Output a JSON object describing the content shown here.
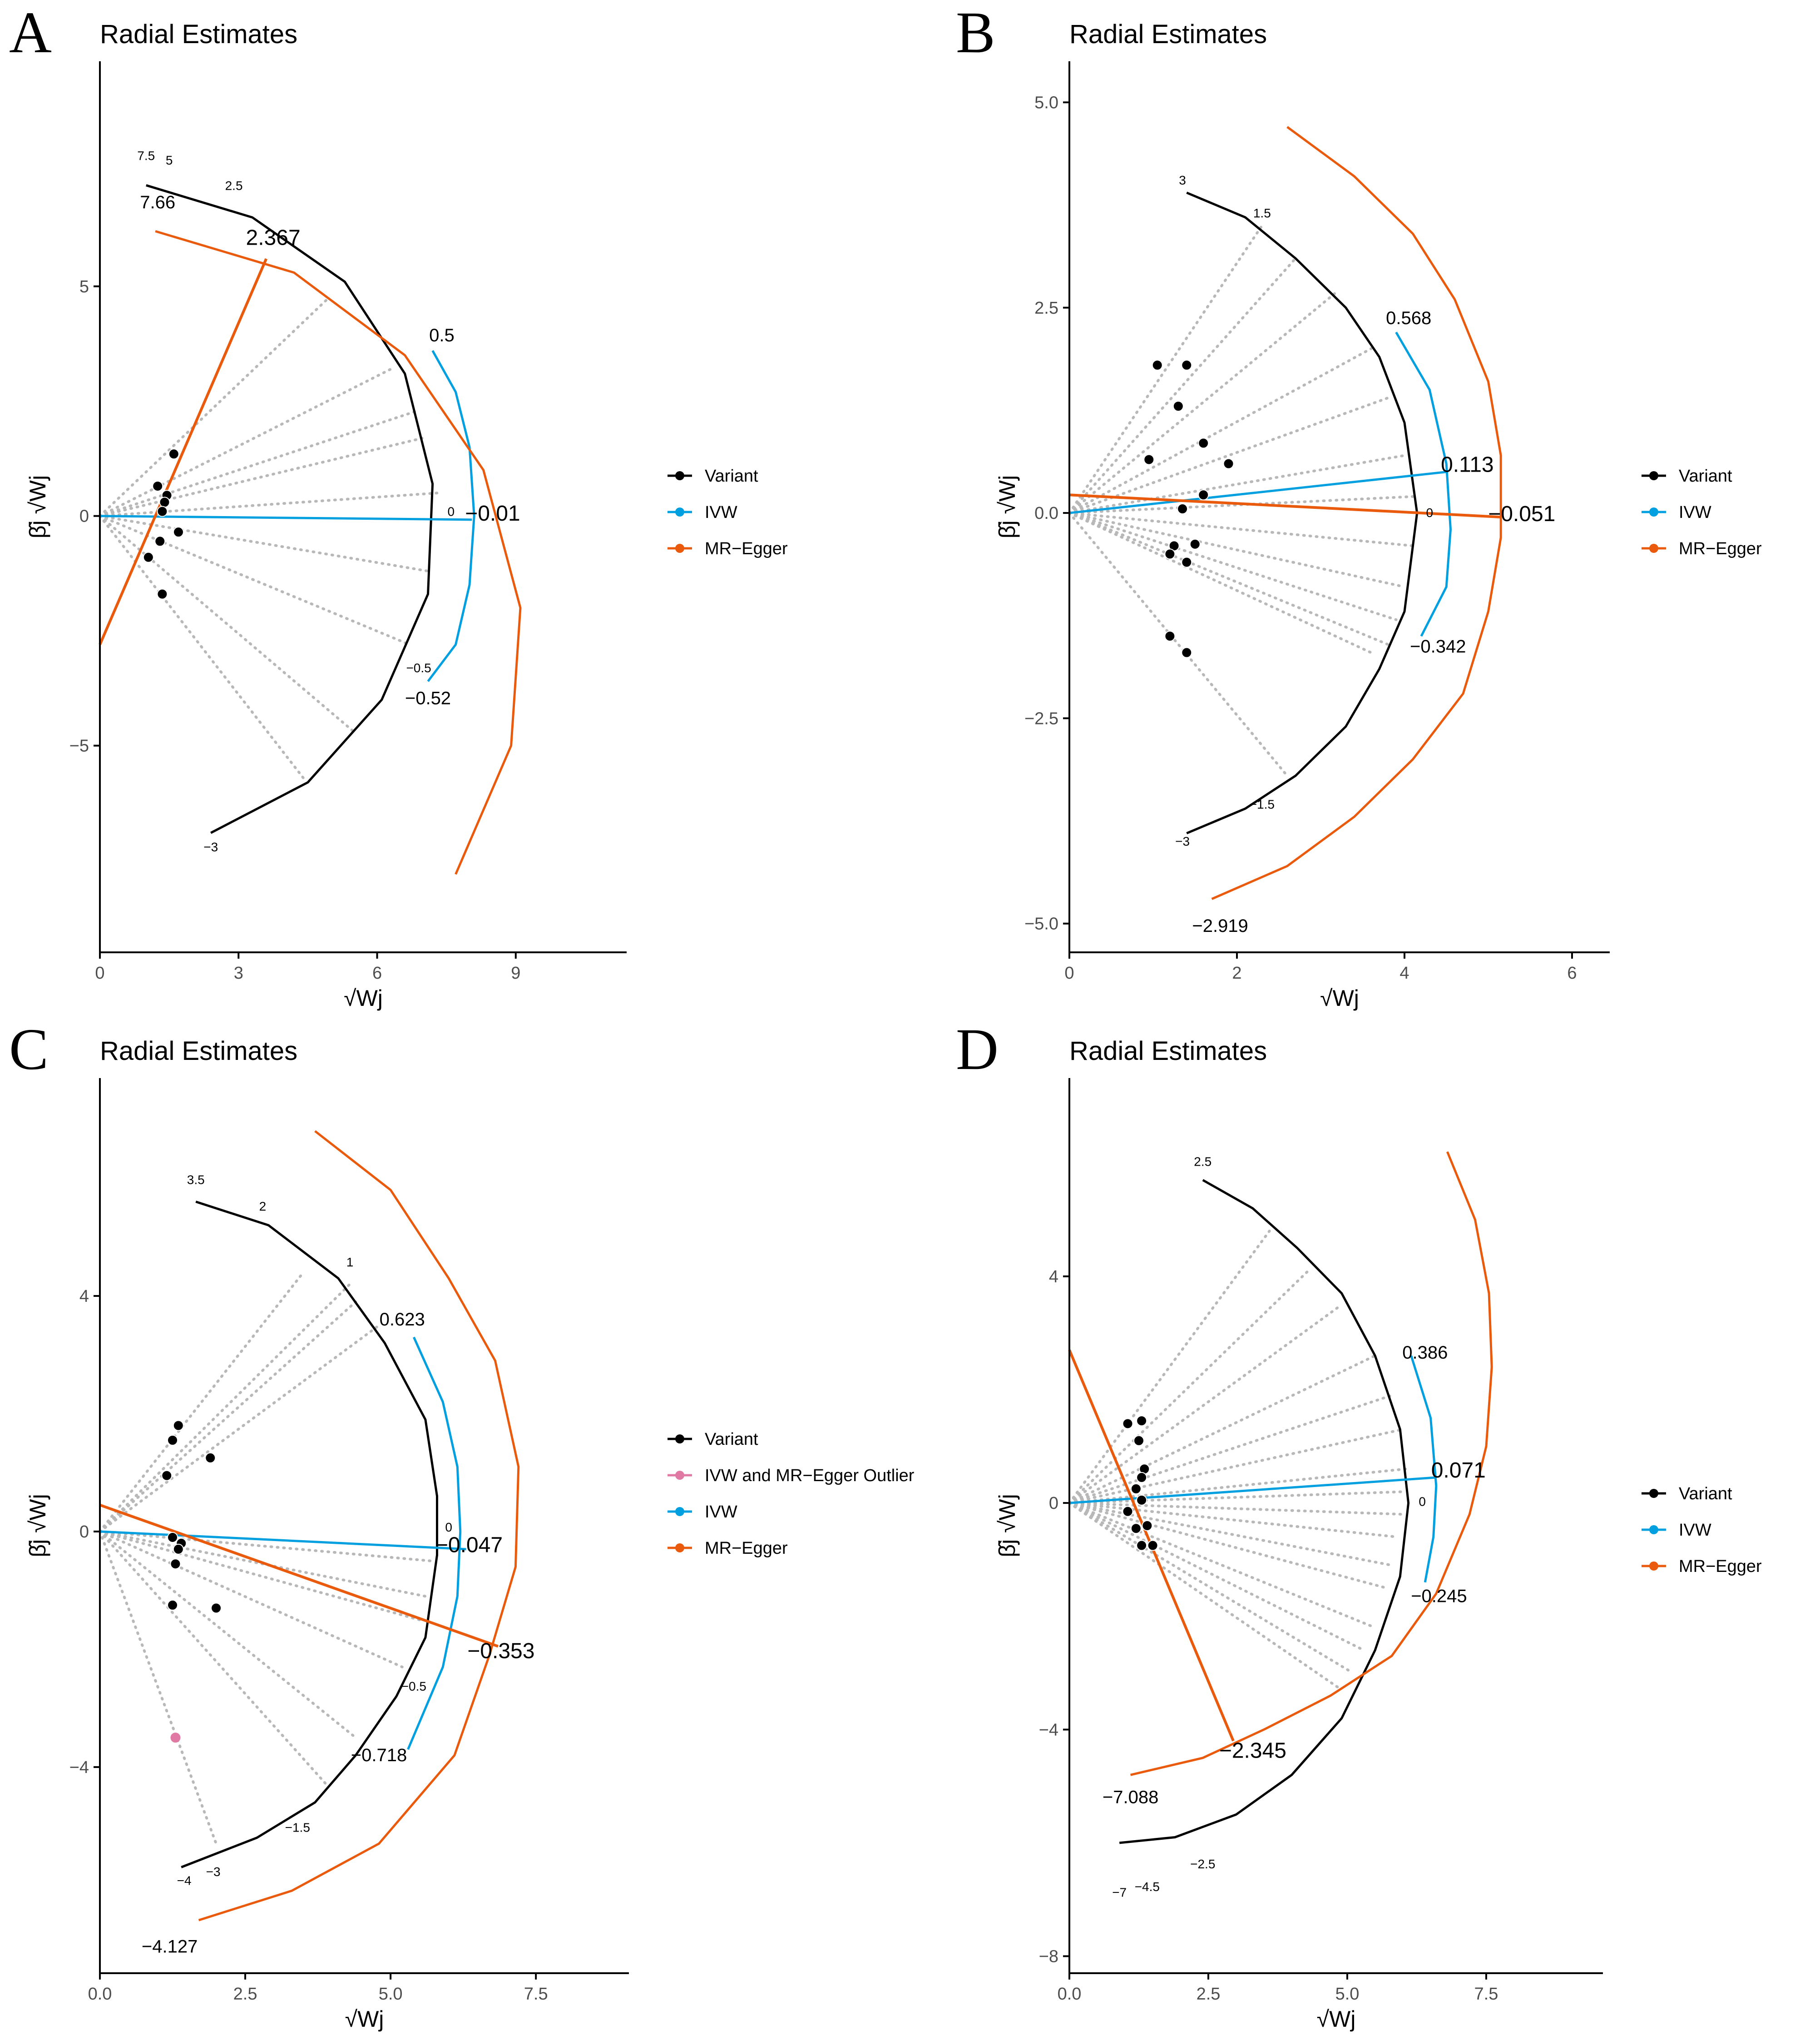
{
  "figure": {
    "colors": {
      "variant": "#000000",
      "ivw": "#00a0e0",
      "egger": "#ea5a0c",
      "outlier": "#e07aa5",
      "dotted": "#b8b8b8",
      "axis": "#000000"
    }
  },
  "chart_data": [
    {
      "type": "scatter",
      "panel": "A",
      "title": "Radial Estimates",
      "xlabel": "√Wj",
      "ylabel": "β̂j √Wj",
      "xlim": [
        0,
        11.4
      ],
      "ylim": [
        -9.5,
        9.9
      ],
      "xticks": [
        0,
        3,
        6,
        9
      ],
      "xtick_labels": [
        "0",
        "3",
        "6",
        "9"
      ],
      "yticks": [
        -5,
        0,
        5
      ],
      "ytick_labels": [
        "−5",
        "0",
        "5"
      ],
      "legend": [
        "Variant",
        "IVW",
        "MR−Egger"
      ],
      "points": [
        [
          1.6,
          1.35
        ],
        [
          1.25,
          0.65
        ],
        [
          1.45,
          0.45
        ],
        [
          1.4,
          0.3
        ],
        [
          1.35,
          0.1
        ],
        [
          1.7,
          -0.35
        ],
        [
          1.3,
          -0.55
        ],
        [
          1.05,
          -0.9
        ],
        [
          1.35,
          -1.7
        ]
      ],
      "outliers": [],
      "variant_curve": [
        [
          1.0,
          7.2
        ],
        [
          3.3,
          6.5
        ],
        [
          5.3,
          5.1
        ],
        [
          6.6,
          3.1
        ],
        [
          7.2,
          0.7
        ],
        [
          7.1,
          -1.7
        ],
        [
          6.1,
          -4.0
        ],
        [
          4.5,
          -5.8
        ],
        [
          2.4,
          -6.9
        ]
      ],
      "ivw_curve": [
        [
          7.2,
          3.6
        ],
        [
          7.7,
          2.7
        ],
        [
          8.0,
          1.5
        ],
        [
          8.1,
          0.0
        ],
        [
          8.0,
          -1.5
        ],
        [
          7.7,
          -2.8
        ],
        [
          7.1,
          -3.6
        ]
      ],
      "egger_curve": [
        [
          1.2,
          6.2
        ],
        [
          4.2,
          5.3
        ],
        [
          6.6,
          3.5
        ],
        [
          8.3,
          1.0
        ],
        [
          9.1,
          -2.0
        ],
        [
          8.9,
          -5.0
        ],
        [
          7.7,
          -7.8
        ]
      ],
      "ivw_line": {
        "from": [
          0,
          0
        ],
        "to": [
          8.05,
          -0.08
        ]
      },
      "egger_line": {
        "from": [
          0,
          -2.8
        ],
        "to": [
          3.6,
          5.6
        ]
      },
      "fan_ends": [
        [
          4.9,
          4.7
        ],
        [
          6.3,
          3.2
        ],
        [
          6.9,
          2.3
        ],
        [
          7.0,
          1.7
        ],
        [
          7.3,
          0.5
        ],
        [
          7.1,
          -1.2
        ],
        [
          6.7,
          -2.8
        ],
        [
          5.5,
          -4.7
        ],
        [
          4.4,
          -5.7
        ]
      ],
      "scale_labels": [
        {
          "text": "7.5",
          "x": 1.0,
          "y": 7.75
        },
        {
          "text": "5",
          "x": 1.5,
          "y": 7.65
        },
        {
          "text": "2.5",
          "x": 2.9,
          "y": 7.1
        },
        {
          "text": "0",
          "x": 7.6,
          "y": -0.0
        },
        {
          "text": "−0.5",
          "x": 6.9,
          "y": -3.4
        },
        {
          "text": "−3",
          "x": 2.4,
          "y": -7.3
        }
      ],
      "value_labels": [
        {
          "text": "7.66",
          "x": 1.25,
          "y": 6.7,
          "size": "mid"
        },
        {
          "text": "2.367",
          "x": 3.75,
          "y": 5.9,
          "size": "big"
        },
        {
          "text": "0.5",
          "x": 7.4,
          "y": 3.8,
          "size": "mid"
        },
        {
          "text": "−0.01",
          "x": 8.5,
          "y": -0.1,
          "size": "big"
        },
        {
          "text": "−0.52",
          "x": 7.1,
          "y": -4.1,
          "size": "mid"
        }
      ]
    },
    {
      "type": "scatter",
      "panel": "B",
      "title": "Radial Estimates",
      "xlabel": "√Wj",
      "ylabel": "β̂j √Wj",
      "xlim": [
        0,
        6.45
      ],
      "ylim": [
        -5.35,
        5.5
      ],
      "xticks": [
        0,
        2,
        4,
        6
      ],
      "xtick_labels": [
        "0",
        "2",
        "4",
        "6"
      ],
      "yticks": [
        -5.0,
        -2.5,
        0.0,
        2.5,
        5.0
      ],
      "ytick_labels": [
        "−5.0",
        "−2.5",
        "0.0",
        "2.5",
        "5.0"
      ],
      "legend": [
        "Variant",
        "IVW",
        "MR−Egger"
      ],
      "points": [
        [
          1.05,
          1.8
        ],
        [
          1.4,
          1.8
        ],
        [
          1.3,
          1.3
        ],
        [
          1.6,
          0.85
        ],
        [
          0.95,
          0.65
        ],
        [
          1.9,
          0.6
        ],
        [
          1.6,
          0.22
        ],
        [
          1.35,
          0.05
        ],
        [
          1.25,
          -0.4
        ],
        [
          1.5,
          -0.38
        ],
        [
          1.2,
          -0.5
        ],
        [
          1.4,
          -0.6
        ],
        [
          1.2,
          -1.5
        ],
        [
          1.4,
          -1.7
        ]
      ],
      "outliers": [],
      "variant_curve": [
        [
          1.4,
          3.9
        ],
        [
          2.1,
          3.6
        ],
        [
          2.7,
          3.1
        ],
        [
          3.3,
          2.5
        ],
        [
          3.7,
          1.9
        ],
        [
          4.0,
          1.1
        ],
        [
          4.15,
          0.0
        ],
        [
          4.0,
          -1.2
        ],
        [
          3.7,
          -1.9
        ],
        [
          3.3,
          -2.6
        ],
        [
          2.7,
          -3.2
        ],
        [
          2.1,
          -3.6
        ],
        [
          1.4,
          -3.9
        ]
      ],
      "ivw_curve": [
        [
          3.9,
          2.2
        ],
        [
          4.3,
          1.5
        ],
        [
          4.5,
          0.6
        ],
        [
          4.55,
          -0.2
        ],
        [
          4.5,
          -0.9
        ],
        [
          4.2,
          -1.5
        ]
      ],
      "egger_curve": [
        [
          2.6,
          4.7
        ],
        [
          3.4,
          4.1
        ],
        [
          4.1,
          3.4
        ],
        [
          4.6,
          2.6
        ],
        [
          5.0,
          1.6
        ],
        [
          5.15,
          0.7
        ],
        [
          5.15,
          -0.3
        ],
        [
          5.0,
          -1.2
        ],
        [
          4.7,
          -2.2
        ],
        [
          4.1,
          -3.0
        ],
        [
          3.4,
          -3.7
        ],
        [
          2.6,
          -4.3
        ],
        [
          1.7,
          -4.7
        ]
      ],
      "ivw_line": {
        "from": [
          0,
          0
        ],
        "to": [
          4.5,
          0.5
        ]
      },
      "egger_line": {
        "from": [
          0,
          0.22
        ],
        "to": [
          5.15,
          -0.05
        ]
      },
      "fan_ends": [
        [
          2.3,
          3.5
        ],
        [
          2.7,
          3.1
        ],
        [
          3.2,
          2.7
        ],
        [
          3.6,
          2.0
        ],
        [
          3.8,
          1.4
        ],
        [
          4.0,
          0.7
        ],
        [
          4.1,
          0.2
        ],
        [
          4.1,
          -0.4
        ],
        [
          4.0,
          -0.9
        ],
        [
          3.9,
          -1.3
        ],
        [
          3.8,
          -1.6
        ],
        [
          3.6,
          -1.7
        ],
        [
          2.6,
          -3.2
        ]
      ],
      "scale_labels": [
        {
          "text": "3",
          "x": 1.35,
          "y": 4.0
        },
        {
          "text": "1.5",
          "x": 2.3,
          "y": 3.6
        },
        {
          "text": "0",
          "x": 4.3,
          "y": -0.05
        },
        {
          "text": "−1.5",
          "x": 2.3,
          "y": -3.6
        },
        {
          "text": "−3",
          "x": 1.35,
          "y": -4.05
        }
      ],
      "value_labels": [
        {
          "text": "0.568",
          "x": 4.05,
          "y": 2.3,
          "size": "mid"
        },
        {
          "text": "0.113",
          "x": 4.75,
          "y": 0.5,
          "size": "big"
        },
        {
          "text": "−0.051",
          "x": 5.4,
          "y": -0.1,
          "size": "big"
        },
        {
          "text": "−0.342",
          "x": 4.4,
          "y": -1.7,
          "size": "mid"
        },
        {
          "text": "−2.919",
          "x": 1.8,
          "y": -5.1,
          "size": "mid"
        }
      ]
    },
    {
      "type": "scatter",
      "panel": "C",
      "title": "Radial Estimates",
      "xlabel": "√Wj",
      "ylabel": "β̂j √Wj",
      "xlim": [
        0,
        9.1
      ],
      "ylim": [
        -7.5,
        7.7
      ],
      "xticks": [
        0.0,
        2.5,
        5.0,
        7.5
      ],
      "xtick_labels": [
        "0.0",
        "2.5",
        "5.0",
        "7.5"
      ],
      "yticks": [
        -4,
        0,
        4
      ],
      "ytick_labels": [
        "−4",
        "0",
        "4"
      ],
      "legend": [
        "Variant",
        "IVW and MR−Egger Outlier",
        "IVW",
        "MR−Egger"
      ],
      "points": [
        [
          1.35,
          1.8
        ],
        [
          1.25,
          1.55
        ],
        [
          1.9,
          1.25
        ],
        [
          1.15,
          0.95
        ],
        [
          1.25,
          -0.1
        ],
        [
          1.4,
          -0.2
        ],
        [
          1.35,
          -0.3
        ],
        [
          1.3,
          -0.55
        ],
        [
          1.25,
          -1.25
        ],
        [
          2.0,
          -1.3
        ]
      ],
      "outliers": [
        [
          1.3,
          -3.5
        ]
      ],
      "variant_curve": [
        [
          1.65,
          5.6
        ],
        [
          2.9,
          5.2
        ],
        [
          4.1,
          4.3
        ],
        [
          4.9,
          3.2
        ],
        [
          5.6,
          1.9
        ],
        [
          5.8,
          0.6
        ],
        [
          5.8,
          -0.4
        ],
        [
          5.6,
          -1.8
        ],
        [
          5.1,
          -2.8
        ],
        [
          4.4,
          -3.8
        ],
        [
          3.7,
          -4.6
        ],
        [
          2.7,
          -5.2
        ],
        [
          1.4,
          -5.7
        ]
      ],
      "ivw_curve": [
        [
          5.4,
          3.3
        ],
        [
          5.9,
          2.2
        ],
        [
          6.15,
          1.1
        ],
        [
          6.2,
          0.0
        ],
        [
          6.15,
          -1.1
        ],
        [
          5.9,
          -2.3
        ],
        [
          5.3,
          -3.7
        ]
      ],
      "egger_curve": [
        [
          3.7,
          6.8
        ],
        [
          5.0,
          5.8
        ],
        [
          6.0,
          4.3
        ],
        [
          6.8,
          2.9
        ],
        [
          7.2,
          1.1
        ],
        [
          7.15,
          -0.6
        ],
        [
          6.7,
          -2.1
        ],
        [
          6.1,
          -3.8
        ],
        [
          4.8,
          -5.3
        ],
        [
          3.3,
          -6.1
        ],
        [
          1.7,
          -6.6
        ]
      ],
      "ivw_line": {
        "from": [
          0,
          0
        ],
        "to": [
          6.3,
          -0.3
        ]
      },
      "egger_line": {
        "from": [
          0,
          0.45
        ],
        "to": [
          6.85,
          -1.95
        ]
      },
      "fan_ends": [
        [
          3.5,
          4.4
        ],
        [
          4.3,
          4.2
        ],
        [
          4.4,
          3.9
        ],
        [
          4.8,
          3.5
        ],
        [
          5.7,
          -0.5
        ],
        [
          5.6,
          -1.1
        ],
        [
          5.5,
          -1.5
        ],
        [
          5.2,
          -2.3
        ],
        [
          4.4,
          -3.5
        ],
        [
          3.9,
          -4.3
        ],
        [
          2.0,
          -5.3
        ]
      ],
      "scale_labels": [
        {
          "text": "3.5",
          "x": 1.65,
          "y": 5.9
        },
        {
          "text": "2",
          "x": 2.8,
          "y": 5.45
        },
        {
          "text": "1",
          "x": 4.3,
          "y": 4.5
        },
        {
          "text": "0",
          "x": 6.0,
          "y": 0.0
        },
        {
          "text": "−0.5",
          "x": 5.4,
          "y": -2.7
        },
        {
          "text": "−1.5",
          "x": 3.4,
          "y": -5.1
        },
        {
          "text": "−3",
          "x": 1.95,
          "y": -5.85
        },
        {
          "text": "−4",
          "x": 1.45,
          "y": -6.0
        }
      ],
      "value_labels": [
        {
          "text": "0.623",
          "x": 5.2,
          "y": 3.5,
          "size": "mid"
        },
        {
          "text": "−0.047",
          "x": 6.35,
          "y": -0.35,
          "size": "big"
        },
        {
          "text": "−0.353",
          "x": 6.9,
          "y": -2.15,
          "size": "big"
        },
        {
          "text": "−0.718",
          "x": 4.8,
          "y": -3.9,
          "size": "mid"
        },
        {
          "text": "−4.127",
          "x": 1.2,
          "y": -7.15,
          "size": "mid"
        }
      ]
    },
    {
      "type": "scatter",
      "panel": "D",
      "title": "Radial Estimates",
      "xlabel": "√Wj",
      "ylabel": "β̂j √Wj",
      "xlim": [
        0,
        9.6
      ],
      "ylim": [
        -8.3,
        7.5
      ],
      "xticks": [
        0.0,
        2.5,
        5.0,
        7.5
      ],
      "xtick_labels": [
        "0.0",
        "2.5",
        "5.0",
        "7.5"
      ],
      "yticks": [
        -8,
        -4,
        0,
        4
      ],
      "ytick_labels": [
        "−8",
        "−4",
        "0",
        "4"
      ],
      "legend": [
        "Variant",
        "IVW",
        "MR−Egger"
      ],
      "points": [
        [
          1.05,
          1.4
        ],
        [
          1.3,
          1.45
        ],
        [
          1.25,
          1.1
        ],
        [
          1.35,
          0.6
        ],
        [
          1.3,
          0.45
        ],
        [
          1.2,
          0.25
        ],
        [
          1.3,
          0.05
        ],
        [
          1.05,
          -0.15
        ],
        [
          1.2,
          -0.45
        ],
        [
          1.4,
          -0.4
        ],
        [
          1.3,
          -0.75
        ],
        [
          1.5,
          -0.75
        ]
      ],
      "outliers": [],
      "variant_curve": [
        [
          2.4,
          5.7
        ],
        [
          3.3,
          5.2
        ],
        [
          4.1,
          4.5
        ],
        [
          4.9,
          3.7
        ],
        [
          5.5,
          2.6
        ],
        [
          5.95,
          1.3
        ],
        [
          6.1,
          0.0
        ],
        [
          5.95,
          -1.3
        ],
        [
          5.5,
          -2.6
        ],
        [
          4.9,
          -3.8
        ],
        [
          4.0,
          -4.8
        ],
        [
          3.0,
          -5.5
        ],
        [
          1.9,
          -5.9
        ],
        [
          0.9,
          -6.0
        ]
      ],
      "ivw_curve": [
        [
          6.15,
          2.6
        ],
        [
          6.5,
          1.5
        ],
        [
          6.6,
          0.3
        ],
        [
          6.55,
          -0.6
        ],
        [
          6.4,
          -1.4
        ]
      ],
      "egger_curve": [
        [
          6.8,
          6.2
        ],
        [
          7.3,
          5.0
        ],
        [
          7.55,
          3.7
        ],
        [
          7.6,
          2.4
        ],
        [
          7.5,
          1.0
        ],
        [
          7.2,
          -0.2
        ],
        [
          6.6,
          -1.6
        ],
        [
          5.8,
          -2.7
        ],
        [
          4.7,
          -3.4
        ],
        [
          3.5,
          -4.0
        ],
        [
          2.4,
          -4.5
        ],
        [
          1.1,
          -4.8
        ]
      ],
      "ivw_line": {
        "from": [
          0,
          0
        ],
        "to": [
          6.6,
          0.45
        ]
      },
      "egger_line": {
        "from": [
          0,
          2.7
        ],
        "to": [
          2.95,
          -4.2
        ]
      },
      "fan_ends": [
        [
          3.6,
          4.8
        ],
        [
          4.3,
          4.1
        ],
        [
          4.9,
          3.5
        ],
        [
          5.5,
          2.6
        ],
        [
          5.8,
          1.9
        ],
        [
          6.0,
          1.3
        ],
        [
          6.05,
          0.6
        ],
        [
          6.05,
          0.2
        ],
        [
          6.0,
          -0.2
        ],
        [
          5.9,
          -0.6
        ],
        [
          5.8,
          -1.1
        ],
        [
          5.7,
          -1.5
        ],
        [
          5.5,
          -2.2
        ],
        [
          5.3,
          -2.6
        ],
        [
          5.1,
          -3.0
        ],
        [
          4.9,
          -3.3
        ]
      ],
      "scale_labels": [
        {
          "text": "2.5",
          "x": 2.4,
          "y": 5.95
        },
        {
          "text": "0",
          "x": 6.35,
          "y": -0.05
        },
        {
          "text": "−2.5",
          "x": 2.4,
          "y": -6.45
        },
        {
          "text": "−4.5",
          "x": 1.4,
          "y": -6.85
        },
        {
          "text": "−7",
          "x": 0.9,
          "y": -6.95
        }
      ],
      "value_labels": [
        {
          "text": "0.386",
          "x": 6.4,
          "y": 2.55,
          "size": "mid"
        },
        {
          "text": "0.071",
          "x": 7.0,
          "y": 0.45,
          "size": "big"
        },
        {
          "text": "−0.245",
          "x": 6.65,
          "y": -1.75,
          "size": "mid"
        },
        {
          "text": "−2.345",
          "x": 3.3,
          "y": -4.5,
          "size": "big"
        },
        {
          "text": "−7.088",
          "x": 1.1,
          "y": -5.3,
          "size": "mid"
        }
      ]
    }
  ]
}
